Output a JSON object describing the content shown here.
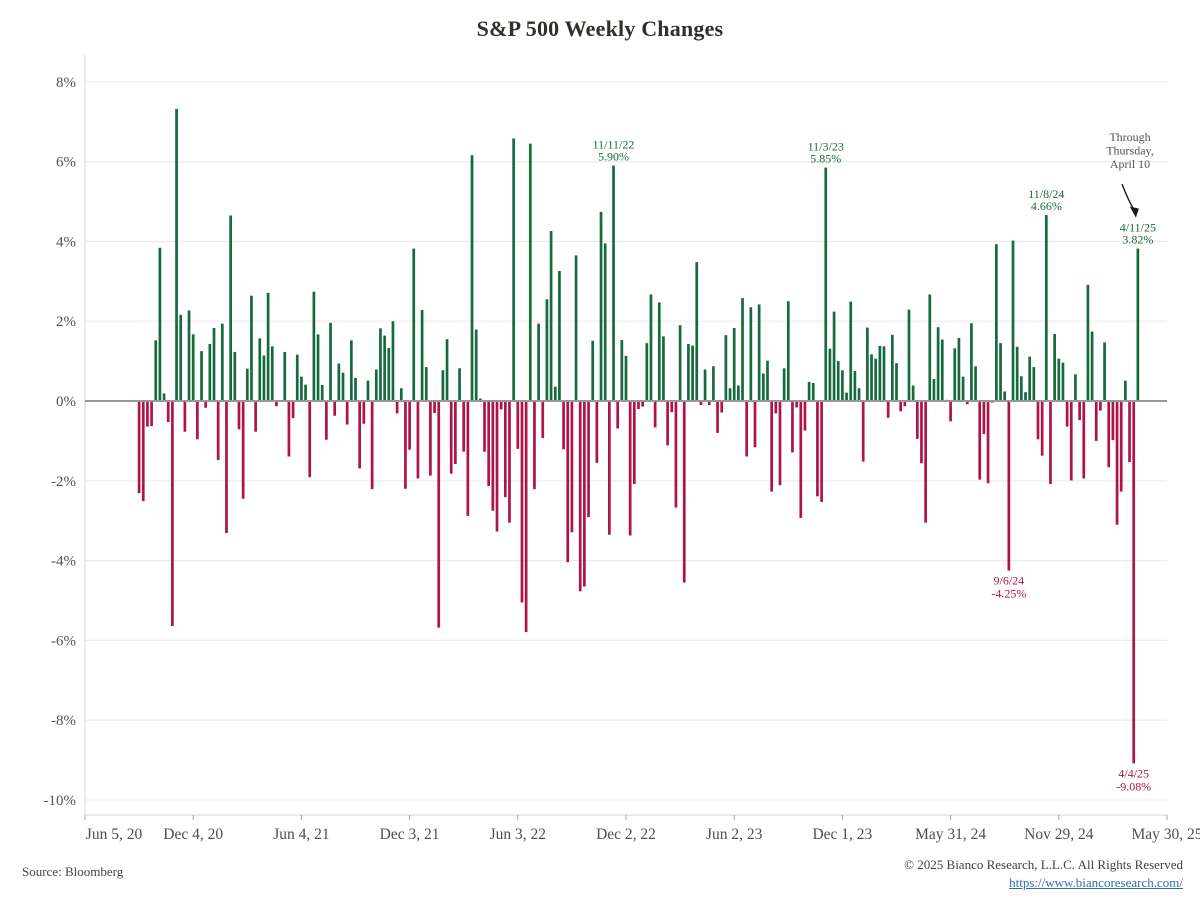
{
  "title": "S&P 500 Weekly Changes",
  "source": "Source: Bloomberg",
  "footer": {
    "copyright": "© 2025 Bianco Research, L.L.C. All Rights Reserved",
    "link": "https://www.biancoresearch.com/"
  },
  "colors": {
    "positive": "#176a3e",
    "negative": "#b01346",
    "grid": "#eeeceb",
    "zero_line": "#9a9894",
    "spine": "#d8d6d2",
    "tick": "#a9a7a3",
    "title_text": "#33302b",
    "y_label_text": "#57544d",
    "x_label_text": "#504e4e",
    "note_text": "#55524d",
    "arrow": "#1a1a1a",
    "link": "#2e6fae"
  },
  "chart_data": {
    "type": "bar",
    "title": "S&P 500 Weekly Changes",
    "xlabel": "",
    "ylabel": "",
    "ylim": [
      -10,
      8
    ],
    "ytick_step": 2,
    "ytick_suffix": "%",
    "grid": "horizontal",
    "legend": "none",
    "x_tick_labels": [
      "Jun 5, 20",
      "Dec 4, 20",
      "Jun 4, 21",
      "Dec 3, 21",
      "Jun 3, 22",
      "Dec 2, 22",
      "Jun 2, 23",
      "Dec 1, 23",
      "May 31, 24",
      "Nov 29, 24",
      "May 30, 25"
    ],
    "weeks_per_tick": 26,
    "axis_total_weeks": 260,
    "first_bar_week_offset": 13,
    "dates": [
      "9/4/20",
      "9/11/20",
      "9/18/20",
      "9/25/20",
      "10/2/20",
      "10/9/20",
      "10/16/20",
      "10/23/20",
      "10/30/20",
      "11/6/20",
      "11/13/20",
      "11/20/20",
      "11/27/20",
      "12/4/20",
      "12/11/20",
      "12/18/20",
      "12/25/20",
      "12/31/20",
      "1/8/21",
      "1/15/21",
      "1/22/21",
      "1/29/21",
      "2/5/21",
      "2/12/21",
      "2/19/21",
      "2/26/21",
      "3/5/21",
      "3/12/21",
      "3/19/21",
      "3/26/21",
      "4/1/21",
      "4/9/21",
      "4/16/21",
      "4/23/21",
      "4/30/21",
      "5/7/21",
      "5/14/21",
      "5/21/21",
      "5/28/21",
      "6/4/21",
      "6/11/21",
      "6/18/21",
      "6/25/21",
      "7/2/21",
      "7/9/21",
      "7/16/21",
      "7/23/21",
      "7/30/21",
      "8/6/21",
      "8/13/21",
      "8/20/21",
      "8/27/21",
      "9/3/21",
      "9/10/21",
      "9/17/21",
      "9/24/21",
      "10/1/21",
      "10/8/21",
      "10/15/21",
      "10/22/21",
      "10/29/21",
      "11/5/21",
      "11/12/21",
      "11/19/21",
      "11/26/21",
      "12/3/21",
      "12/10/21",
      "12/17/21",
      "12/23/21",
      "12/31/21",
      "1/7/22",
      "1/14/22",
      "1/21/22",
      "1/28/22",
      "2/4/22",
      "2/11/22",
      "2/18/22",
      "2/25/22",
      "3/4/22",
      "3/11/22",
      "3/18/22",
      "3/25/22",
      "4/1/22",
      "4/8/22",
      "4/14/22",
      "4/22/22",
      "4/29/22",
      "5/6/22",
      "5/13/22",
      "5/20/22",
      "5/27/22",
      "6/3/22",
      "6/10/22",
      "6/17/22",
      "6/24/22",
      "7/1/22",
      "7/8/22",
      "7/15/22",
      "7/22/22",
      "7/29/22",
      "8/5/22",
      "8/12/22",
      "8/19/22",
      "8/26/22",
      "9/2/22",
      "9/9/22",
      "9/16/22",
      "9/23/22",
      "9/30/22",
      "10/7/22",
      "10/14/22",
      "10/21/22",
      "10/28/22",
      "11/4/22",
      "11/11/22",
      "11/18/22",
      "11/25/22",
      "12/2/22",
      "12/9/22",
      "12/16/22",
      "12/23/22",
      "12/30/22",
      "1/6/23",
      "1/13/23",
      "1/20/23",
      "1/27/23",
      "2/3/23",
      "2/10/23",
      "2/17/23",
      "2/24/23",
      "3/3/23",
      "3/10/23",
      "3/17/23",
      "3/24/23",
      "3/31/23",
      "4/6/23",
      "4/14/23",
      "4/21/23",
      "4/28/23",
      "5/5/23",
      "5/12/23",
      "5/19/23",
      "5/26/23",
      "6/2/23",
      "6/9/23",
      "6/16/23",
      "6/23/23",
      "6/30/23",
      "7/7/23",
      "7/14/23",
      "7/21/23",
      "7/28/23",
      "8/4/23",
      "8/11/23",
      "8/18/23",
      "8/25/23",
      "9/1/23",
      "9/8/23",
      "9/15/23",
      "9/22/23",
      "9/29/23",
      "10/6/23",
      "10/13/23",
      "10/20/23",
      "10/27/23",
      "11/3/23",
      "11/10/23",
      "11/17/23",
      "11/24/23",
      "12/1/23",
      "12/8/23",
      "12/15/23",
      "12/22/23",
      "12/29/23",
      "1/5/24",
      "1/12/24",
      "1/19/24",
      "1/26/24",
      "2/2/24",
      "2/9/24",
      "2/16/24",
      "2/23/24",
      "3/1/24",
      "3/8/24",
      "3/15/24",
      "3/22/24",
      "3/28/24",
      "4/5/24",
      "4/12/24",
      "4/19/24",
      "4/26/24",
      "5/3/24",
      "5/10/24",
      "5/17/24",
      "5/24/24",
      "5/31/24",
      "6/7/24",
      "6/14/24",
      "6/21/24",
      "6/28/24",
      "7/5/24",
      "7/12/24",
      "7/19/24",
      "7/26/24",
      "8/2/24",
      "8/9/24",
      "8/16/24",
      "8/23/24",
      "8/30/24",
      "9/6/24",
      "9/13/24",
      "9/20/24",
      "9/27/24",
      "10/4/24",
      "10/11/24",
      "10/18/24",
      "10/25/24",
      "11/1/24",
      "11/8/24",
      "11/15/24",
      "11/22/24",
      "11/29/24",
      "12/6/24",
      "12/13/24",
      "12/20/24",
      "12/27/24",
      "1/3/25",
      "1/10/25",
      "1/17/25",
      "1/24/25",
      "1/31/25",
      "2/7/25",
      "2/14/25",
      "2/21/25",
      "2/28/25",
      "3/7/25",
      "3/14/25",
      "3/21/25",
      "3/28/25",
      "4/4/25",
      "4/11/25"
    ],
    "values": [
      -2.31,
      -2.51,
      -0.64,
      -0.63,
      1.52,
      3.84,
      0.19,
      -0.53,
      -5.64,
      7.32,
      2.16,
      -0.77,
      2.27,
      1.67,
      -0.96,
      1.25,
      -0.17,
      1.43,
      1.83,
      -1.48,
      1.94,
      -3.31,
      4.65,
      1.23,
      -0.71,
      -2.45,
      0.81,
      2.64,
      -0.77,
      1.57,
      1.14,
      2.71,
      1.37,
      -0.13,
      0.02,
      1.23,
      -1.39,
      -0.43,
      1.16,
      0.61,
      0.41,
      -1.91,
      2.74,
      1.67,
      0.4,
      -0.97,
      1.96,
      -0.37,
      0.94,
      0.71,
      -0.59,
      1.52,
      0.58,
      -1.69,
      -0.57,
      0.51,
      -2.21,
      0.79,
      1.82,
      1.64,
      1.33,
      2.0,
      -0.31,
      0.32,
      -2.2,
      -1.22,
      3.82,
      -1.94,
      2.28,
      0.85,
      -1.87,
      -0.3,
      -5.68,
      0.77,
      1.55,
      -1.82,
      -1.58,
      0.82,
      -1.27,
      -2.88,
      6.16,
      1.79,
      0.06,
      -1.27,
      -2.13,
      -2.75,
      -3.27,
      -0.21,
      -2.41,
      -3.05,
      6.58,
      -1.2,
      -5.05,
      -5.79,
      6.45,
      -2.21,
      1.94,
      -0.93,
      2.55,
      4.26,
      0.36,
      3.26,
      -1.21,
      -4.04,
      -3.29,
      3.65,
      -4.77,
      -4.65,
      -2.91,
      1.51,
      -1.55,
      4.74,
      3.95,
      -3.35,
      5.9,
      -0.69,
      1.53,
      1.13,
      -3.37,
      -2.08,
      -0.2,
      -0.14,
      1.45,
      2.67,
      -0.66,
      2.47,
      1.62,
      -1.11,
      -0.28,
      -2.67,
      1.9,
      -4.55,
      1.43,
      1.39,
      3.48,
      -0.1,
      0.79,
      -0.1,
      0.87,
      -0.8,
      -0.29,
      1.65,
      0.32,
      1.83,
      0.39,
      2.58,
      -1.39,
      2.35,
      -1.16,
      2.42,
      0.69,
      1.01,
      -2.27,
      -0.31,
      -2.11,
      0.82,
      2.5,
      -1.29,
      -0.16,
      -2.93,
      -0.74,
      0.48,
      0.45,
      -2.39,
      -2.53,
      5.85,
      1.31,
      2.24,
      1.0,
      0.77,
      0.21,
      2.49,
      0.75,
      0.32,
      -1.52,
      1.84,
      1.17,
      1.06,
      1.38,
      1.37,
      -0.42,
      1.66,
      0.95,
      -0.26,
      -0.13,
      2.29,
      0.39,
      -0.95,
      -1.56,
      -3.05,
      2.67,
      0.55,
      1.85,
      1.54,
      0.03,
      -0.51,
      1.32,
      1.58,
      0.61,
      -0.08,
      1.95,
      0.87,
      -1.97,
      -0.83,
      -2.06,
      -0.04,
      3.93,
      1.45,
      0.24,
      -4.25,
      4.02,
      1.36,
      0.62,
      0.22,
      1.11,
      0.85,
      -0.96,
      -1.37,
      4.66,
      -2.08,
      1.68,
      1.06,
      0.96,
      -0.64,
      -1.99,
      0.67,
      -0.48,
      -1.94,
      2.91,
      1.74,
      -1.0,
      -0.24,
      1.47,
      -1.66,
      -0.98,
      -3.1,
      -2.27,
      0.51,
      -1.53,
      -9.08,
      3.82
    ],
    "annotations": [
      {
        "label": "11/11/22",
        "value_label": "5.90%",
        "index": 114,
        "placement": "above",
        "color": "positive"
      },
      {
        "label": "11/3/23",
        "value_label": "5.85%",
        "index": 165,
        "placement": "above",
        "color": "positive"
      },
      {
        "label": "11/8/24",
        "value_label": "4.66%",
        "index": 218,
        "placement": "above",
        "color": "positive"
      },
      {
        "label": "9/6/24",
        "value_label": "-4.25%",
        "index": 209,
        "placement": "below",
        "color": "negative"
      },
      {
        "label": "4/4/25",
        "value_label": "-9.08%",
        "index": 239,
        "placement": "below",
        "color": "negative"
      },
      {
        "label": "4/11/25",
        "value_label": "3.82%",
        "index": 240,
        "placement": "above",
        "color": "positive"
      }
    ],
    "note": {
      "text": "Through Thursday, April 10",
      "lines": [
        "Through",
        "Thursday,",
        "April 10"
      ],
      "arrow_to_index": 240
    }
  }
}
